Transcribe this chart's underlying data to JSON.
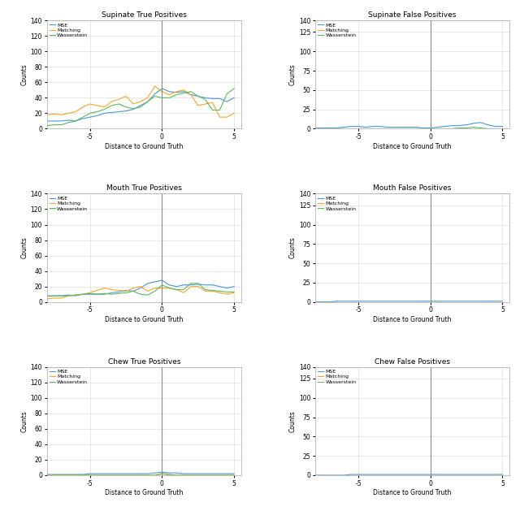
{
  "titles": [
    "Supinate True Positives",
    "Supinate False Positives",
    "Mouth True Positives",
    "Mouth False Positives",
    "Chew True Positives",
    "Chew False Positives"
  ],
  "xlabel": "Distance to Ground Truth",
  "ylabel": "Counts",
  "legend_labels": [
    "MSE",
    "Matching",
    "Wasserstein"
  ],
  "line_colors": [
    "#4C96D7",
    "#F5A623",
    "#5CB85C"
  ],
  "supinate_tp": {
    "x": [
      -8,
      -7.5,
      -7,
      -6.5,
      -6,
      -5.5,
      -5,
      -4.5,
      -4,
      -3.5,
      -3,
      -2.5,
      -2,
      -1.5,
      -1,
      -0.5,
      0,
      0.5,
      1,
      1.5,
      2,
      2.5,
      3,
      3.5,
      4,
      4.5,
      5
    ],
    "mse": [
      10,
      10,
      10,
      11,
      10,
      13,
      15,
      17,
      20,
      21,
      22,
      23,
      25,
      30,
      35,
      45,
      52,
      48,
      47,
      48,
      44,
      42,
      40,
      39,
      39,
      35,
      40
    ],
    "matching": [
      18,
      19,
      18,
      20,
      22,
      28,
      32,
      30,
      28,
      35,
      38,
      42,
      32,
      35,
      40,
      55,
      48,
      44,
      48,
      50,
      44,
      30,
      32,
      34,
      15,
      15,
      20
    ],
    "wasserstein": [
      4,
      5,
      5,
      8,
      10,
      15,
      20,
      22,
      25,
      30,
      32,
      28,
      26,
      28,
      35,
      42,
      40,
      40,
      44,
      46,
      48,
      42,
      38,
      24,
      24,
      45,
      52
    ]
  },
  "supinate_fp": {
    "x": [
      -8,
      -7.5,
      -7,
      -6.5,
      -6,
      -5.5,
      -5,
      -4.5,
      -4,
      -3.5,
      -3,
      -2.5,
      -2,
      -1.5,
      -1,
      -0.5,
      0,
      0.5,
      1,
      1.5,
      2,
      2.5,
      3,
      3.5,
      4,
      4.5,
      5
    ],
    "mse": [
      1,
      1,
      1,
      1,
      2,
      3,
      3,
      2,
      3,
      3,
      2,
      2,
      2,
      2,
      2,
      1,
      1,
      2,
      3,
      4,
      4,
      5,
      7,
      8,
      5,
      3,
      3
    ],
    "matching": [
      0,
      0,
      0,
      0,
      0,
      0,
      0,
      0,
      0,
      0,
      0,
      0,
      0,
      0,
      0,
      0,
      0,
      0,
      0,
      0,
      0,
      0,
      0,
      0,
      0,
      0,
      0
    ],
    "wasserstein": [
      0,
      0,
      0,
      0,
      0,
      0,
      0,
      0,
      0,
      0,
      0,
      0,
      0,
      0,
      0,
      0,
      0,
      0,
      0,
      0,
      1,
      1,
      2,
      1,
      0,
      0,
      0
    ]
  },
  "mouth_tp": {
    "x": [
      -8,
      -7.5,
      -7,
      -6.5,
      -6,
      -5.5,
      -5,
      -4.5,
      -4,
      -3.5,
      -3,
      -2.5,
      -2,
      -1.5,
      -1,
      -0.5,
      0,
      0.5,
      1,
      1.5,
      2,
      2.5,
      3,
      3.5,
      4,
      4.5,
      5
    ],
    "mse": [
      8,
      8,
      8,
      9,
      8,
      10,
      10,
      10,
      10,
      12,
      13,
      15,
      14,
      18,
      24,
      26,
      28,
      22,
      20,
      22,
      22,
      23,
      22,
      22,
      20,
      18,
      20
    ],
    "matching": [
      4,
      5,
      5,
      8,
      9,
      10,
      12,
      15,
      18,
      16,
      15,
      14,
      18,
      20,
      14,
      18,
      18,
      18,
      16,
      12,
      20,
      20,
      14,
      14,
      12,
      10,
      12
    ],
    "wasserstein": [
      7,
      8,
      8,
      8,
      9,
      10,
      11,
      10,
      11,
      10,
      11,
      12,
      14,
      10,
      9,
      14,
      22,
      18,
      16,
      16,
      24,
      24,
      16,
      15,
      14,
      13,
      13
    ]
  },
  "mouth_fp": {
    "x": [
      -8,
      -7.5,
      -7,
      -6.5,
      -6,
      -5.5,
      -5,
      -4.5,
      -4,
      -3.5,
      -3,
      -2.5,
      -2,
      -1.5,
      -1,
      -0.5,
      0,
      0.5,
      1,
      1.5,
      2,
      2.5,
      3,
      3.5,
      4,
      4.5,
      5
    ],
    "mse": [
      0,
      0,
      0,
      1,
      1,
      1,
      1,
      1,
      1,
      1,
      1,
      1,
      1,
      1,
      1,
      1,
      1,
      1,
      1,
      1,
      1,
      1,
      1,
      1,
      1,
      1,
      1
    ],
    "matching": [
      0,
      0,
      0,
      0,
      0,
      0,
      0,
      0,
      0,
      0,
      0,
      0,
      0,
      0,
      0,
      0,
      0,
      0,
      0,
      0,
      0,
      0,
      0,
      0,
      0,
      0,
      0
    ],
    "wasserstein": [
      0,
      0,
      0,
      0,
      0,
      0,
      0,
      0,
      0,
      0,
      0,
      0,
      0,
      0,
      0,
      0,
      0,
      0,
      0,
      0,
      0,
      0,
      0,
      0,
      0,
      0,
      0
    ]
  },
  "chew_tp": {
    "x": [
      -8,
      -7.5,
      -7,
      -6.5,
      -6,
      -5.5,
      -5,
      -4.5,
      -4,
      -3.5,
      -3,
      -2.5,
      -2,
      -1.5,
      -1,
      -0.5,
      0,
      0.5,
      1,
      1.5,
      2,
      2.5,
      3,
      3.5,
      4,
      4.5,
      5
    ],
    "mse": [
      1,
      1,
      1,
      1,
      1,
      1,
      2,
      2,
      2,
      2,
      2,
      2,
      2,
      2,
      2,
      3,
      4,
      3,
      3,
      2,
      2,
      2,
      2,
      2,
      2,
      2,
      2
    ],
    "matching": [
      0,
      0,
      0,
      0,
      0,
      0,
      0,
      0,
      0,
      0,
      0,
      0,
      0,
      0,
      0,
      0,
      2,
      0,
      0,
      0,
      0,
      0,
      0,
      0,
      0,
      0,
      0
    ],
    "wasserstein": [
      0,
      0,
      0,
      0,
      0,
      0,
      0,
      0,
      0,
      0,
      0,
      0,
      0,
      0,
      0,
      0,
      2,
      1,
      0,
      0,
      0,
      0,
      0,
      0,
      0,
      0,
      0
    ]
  },
  "chew_fp": {
    "x": [
      -8,
      -7.5,
      -7,
      -6.5,
      -6,
      -5.5,
      -5,
      -4.5,
      -4,
      -3.5,
      -3,
      -2.5,
      -2,
      -1.5,
      -1,
      -0.5,
      0,
      0.5,
      1,
      1.5,
      2,
      2.5,
      3,
      3.5,
      4,
      4.5,
      5
    ],
    "mse": [
      0,
      0,
      0,
      0,
      0,
      1,
      1,
      1,
      1,
      1,
      1,
      1,
      1,
      1,
      1,
      1,
      1,
      1,
      1,
      1,
      1,
      1,
      1,
      1,
      1,
      1,
      1
    ],
    "matching": [
      0,
      0,
      0,
      0,
      0,
      0,
      0,
      0,
      0,
      0,
      0,
      0,
      0,
      0,
      0,
      0,
      0,
      0,
      0,
      0,
      0,
      0,
      0,
      0,
      0,
      0,
      0
    ],
    "wasserstein": [
      0,
      0,
      0,
      0,
      0,
      0,
      0,
      0,
      0,
      0,
      0,
      0,
      0,
      0,
      0,
      0,
      0,
      0,
      0,
      0,
      0,
      0,
      0,
      0,
      0,
      0,
      0
    ]
  },
  "tp_ylim": [
    0,
    60
  ],
  "fp_ylim": [
    0,
    10
  ],
  "tp_yticks": [
    0,
    20,
    40,
    60,
    80,
    100,
    120,
    140
  ],
  "fp_yticks": [
    0,
    25,
    50,
    75,
    100,
    125,
    140
  ],
  "xlim": [
    -8,
    5.5
  ],
  "xticks": [
    -5,
    0,
    5
  ]
}
